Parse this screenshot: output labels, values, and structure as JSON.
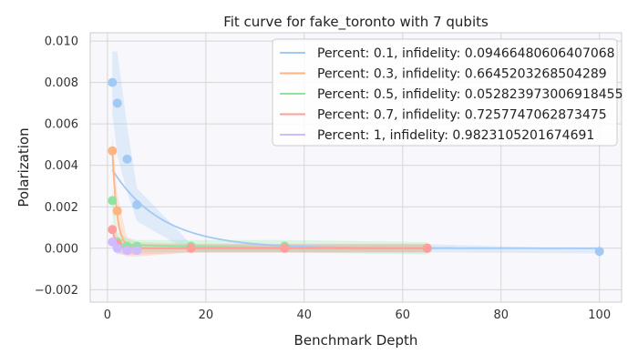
{
  "chart_data": {
    "type": "scatter",
    "title": "Fit curve for fake_toronto with 7 qubits",
    "xlabel": "Benchmark Depth",
    "ylabel": "Polarization",
    "xlim": [
      -3.5,
      104.5
    ],
    "ylim": [
      -0.0026,
      0.0104
    ],
    "xticks": [
      0,
      20,
      40,
      60,
      80,
      100
    ],
    "yticks": [
      -0.002,
      0,
      0.002,
      0.004,
      0.006,
      0.008,
      0.01
    ],
    "ytick_labels": [
      "−0.002",
      "0.000",
      "0.002",
      "0.004",
      "0.006",
      "0.008",
      "0.010"
    ],
    "grid": true,
    "background": "#f8f8fc",
    "legend_position": "top-right",
    "series": [
      {
        "name": "Percent: 0.1, infidelity: 0.09466480606407068",
        "color": "#a1c9f4",
        "x": [
          1,
          2,
          4,
          6,
          17,
          36,
          65,
          100
        ],
        "y": [
          0.008,
          0.007,
          0.0043,
          0.0021,
          0.0,
          0.0,
          0.0,
          -0.00015
        ],
        "err": [
          0.0015,
          0.0025,
          0.0016,
          0.0008,
          0.0002,
          0.0002,
          0.0002,
          0.0001
        ],
        "fit": {
          "a": 0.00418,
          "p": 0.9053
        }
      },
      {
        "name": "Percent: 0.3, infidelity: 0.6645203268504289",
        "color": "#ffb482",
        "x": [
          1,
          2,
          4,
          6,
          17,
          36,
          65
        ],
        "y": [
          0.0047,
          0.0018,
          0.0001,
          0.0,
          0.0,
          0.0,
          0.0
        ],
        "err": [
          0.0008,
          0.0008,
          0.0004,
          0.0003,
          0.0002,
          0.0002,
          0.0002
        ],
        "fit": {
          "a": 0.014,
          "p": 0.3355
        }
      },
      {
        "name": "Percent: 0.5, infidelity: 0.052823973006918455",
        "color": "#8de5a1",
        "x": [
          1,
          2,
          4,
          6,
          17,
          36,
          65
        ],
        "y": [
          0.0023,
          0.0003,
          0.0001,
          0.0001,
          0.0001,
          0.0001,
          0.0
        ],
        "err": [
          0.0006,
          0.0005,
          0.0004,
          0.0003,
          0.0003,
          0.0003,
          0.0003
        ],
        "fit": {
          "a": 0.00022,
          "p": 0.9472
        }
      },
      {
        "name": "Percent: 0.7, infidelity: 0.7257747062873475",
        "color": "#ff9f9b",
        "x": [
          1,
          2,
          4,
          6,
          17,
          36,
          65
        ],
        "y": [
          0.0009,
          0.0002,
          -0.0001,
          -0.0001,
          0.0,
          0.0,
          0.0
        ],
        "err": [
          0.0004,
          0.0004,
          0.0003,
          0.0003,
          0.0002,
          0.0002,
          0.0002
        ],
        "fit": {
          "a": 0.0033,
          "p": 0.2742
        }
      },
      {
        "name": "Percent: 1, infidelity: 0.9823105201674691",
        "color": "#d0bbff",
        "x": [
          1,
          2,
          4,
          6
        ],
        "y": [
          0.0003,
          0.0,
          -0.0001,
          -0.0001
        ],
        "err": [
          0.0003,
          0.0003,
          0.0002,
          0.0002
        ],
        "fit": {
          "a": 0.017,
          "p": 0.0177
        }
      }
    ]
  }
}
